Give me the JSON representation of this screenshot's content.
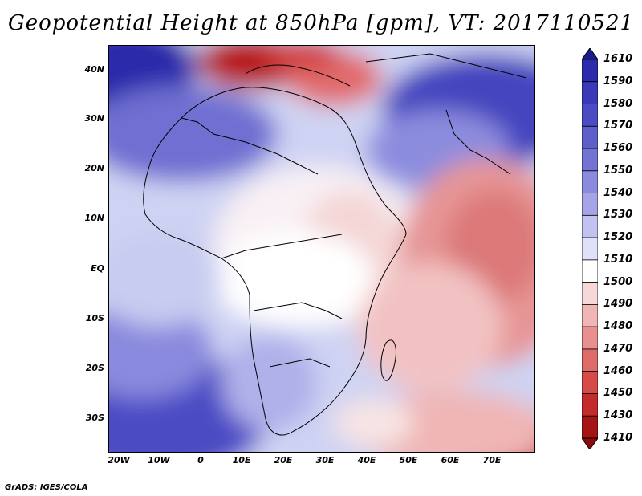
{
  "title": "Geopotential Height at 850hPa [gpm], VT: 2017110521",
  "footer": "GrADS: IGES/COLA",
  "map": {
    "variable": "Geopotential Height",
    "level": "850hPa",
    "units": "gpm",
    "valid_time": "2017110521",
    "lat_labels": [
      "40N",
      "30N",
      "20N",
      "10N",
      "EQ",
      "10S",
      "20S",
      "30S"
    ],
    "lon_labels": [
      "20W",
      "10W",
      "0",
      "10E",
      "20E",
      "30E",
      "40E",
      "50E",
      "60E",
      "70E"
    ]
  },
  "colorbar": {
    "levels": [
      "1610",
      "1590",
      "1580",
      "1570",
      "1560",
      "1550",
      "1540",
      "1530",
      "1520",
      "1510",
      "1500",
      "1490",
      "1480",
      "1470",
      "1460",
      "1450",
      "1430",
      "1410"
    ],
    "colors": [
      "#1a1a8c",
      "#2b2bab",
      "#3a3ab8",
      "#4b4bc4",
      "#5f5fcc",
      "#7373d4",
      "#8a8ade",
      "#a4a4e6",
      "#c2c2f0",
      "#e0e0f8",
      "#ffffff",
      "#f7d8d8",
      "#f0b5b5",
      "#e89090",
      "#df6a6a",
      "#d64a4a",
      "#c42c2c",
      "#a51515",
      "#8b0a0a"
    ]
  }
}
